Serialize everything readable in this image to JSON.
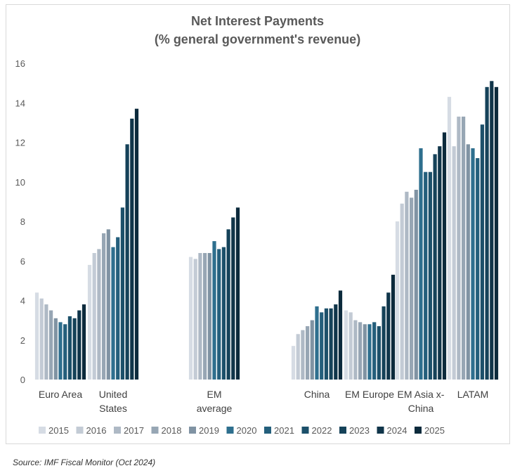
{
  "chart_data": {
    "type": "bar",
    "title": "Net Interest Payments",
    "subtitle": "(% general government's revenue)",
    "xlabel": "",
    "ylabel": "",
    "ylim": [
      0,
      16
    ],
    "yticks": [
      "0",
      "2",
      "4",
      "6",
      "8",
      "10",
      "12",
      "14",
      "16"
    ],
    "grid": false,
    "legend": "bottom",
    "categories": [
      [
        "Euro Area"
      ],
      [
        "United",
        "States"
      ],
      [
        "EM",
        "average"
      ],
      [
        "China"
      ],
      [
        "EM Europe"
      ],
      [
        "EM Asia x-",
        "China"
      ],
      [
        "LATAM"
      ]
    ],
    "series": [
      {
        "name": "2015",
        "color": "#d6dce4",
        "values": [
          4.4,
          5.8,
          6.2,
          1.7,
          3.5,
          8.0,
          14.3
        ]
      },
      {
        "name": "2016",
        "color": "#c3cbd5",
        "values": [
          4.1,
          6.4,
          6.1,
          2.3,
          3.4,
          8.9,
          11.8
        ]
      },
      {
        "name": "2017",
        "color": "#aeb9c5",
        "values": [
          3.8,
          6.6,
          6.4,
          2.5,
          3.0,
          9.5,
          13.3
        ]
      },
      {
        "name": "2018",
        "color": "#97a6b4",
        "values": [
          3.5,
          7.4,
          6.4,
          2.7,
          2.9,
          9.2,
          13.3
        ]
      },
      {
        "name": "2019",
        "color": "#8093a3",
        "values": [
          3.1,
          7.6,
          6.4,
          3.0,
          2.8,
          9.6,
          11.9
        ]
      },
      {
        "name": "2020",
        "color": "#2e6f8e",
        "values": [
          2.9,
          6.7,
          7.0,
          3.7,
          2.8,
          11.7,
          11.7
        ]
      },
      {
        "name": "2021",
        "color": "#245f7c",
        "values": [
          2.8,
          7.2,
          6.6,
          3.4,
          2.9,
          10.5,
          11.2
        ]
      },
      {
        "name": "2022",
        "color": "#1c506a",
        "values": [
          3.2,
          8.7,
          6.7,
          3.6,
          2.7,
          10.5,
          12.9
        ]
      },
      {
        "name": "2023",
        "color": "#154259",
        "values": [
          3.1,
          11.9,
          7.6,
          3.6,
          3.7,
          11.4,
          14.8
        ]
      },
      {
        "name": "2024",
        "color": "#10354a",
        "values": [
          3.5,
          13.2,
          8.2,
          3.8,
          4.4,
          11.8,
          15.1
        ]
      },
      {
        "name": "2025",
        "color": "#0c2a3c",
        "values": [
          3.8,
          13.7,
          8.7,
          4.5,
          5.3,
          12.5,
          14.8
        ]
      }
    ]
  },
  "source": "Source: IMF Fiscal Monitor (Oct 2024)"
}
